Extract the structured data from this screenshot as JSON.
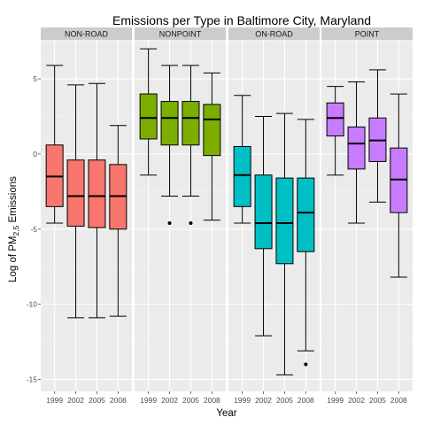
{
  "chart_data": {
    "type": "boxplot",
    "title": "Emissions per Type in Baltimore City, Maryland",
    "xlabel": "Year",
    "ylabel": {
      "prefix": "Log of PM",
      "subscript": "2.5",
      "suffix": " Emissions"
    },
    "ylim": [
      -15.8,
      7.6
    ],
    "y_ticks": [
      5,
      0,
      -5,
      -10,
      -15
    ],
    "y_tick_labels": [
      "5",
      "0",
      "-5",
      "-10",
      "-15"
    ],
    "categories": [
      "1999",
      "2002",
      "2005",
      "2008"
    ],
    "grid": true,
    "facets": [
      {
        "name": "NON-ROAD",
        "color": "#F8766D",
        "boxes": [
          {
            "year": "1999",
            "min": -4.6,
            "q1": -3.5,
            "median": -1.5,
            "q3": 0.6,
            "max": 5.9,
            "outliers": []
          },
          {
            "year": "2002",
            "min": -10.9,
            "q1": -4.8,
            "median": -2.8,
            "q3": -0.4,
            "max": 4.6,
            "outliers": []
          },
          {
            "year": "2005",
            "min": -10.9,
            "q1": -4.9,
            "median": -2.8,
            "q3": -0.4,
            "max": 4.7,
            "outliers": []
          },
          {
            "year": "2008",
            "min": -10.8,
            "q1": -5.0,
            "median": -2.8,
            "q3": -0.7,
            "max": 1.9,
            "outliers": []
          }
        ]
      },
      {
        "name": "NONPOINT",
        "color": "#7CAE00",
        "boxes": [
          {
            "year": "1999",
            "min": -1.4,
            "q1": 1.0,
            "median": 2.4,
            "q3": 4.0,
            "max": 7.0,
            "outliers": []
          },
          {
            "year": "2002",
            "min": -2.8,
            "q1": 0.6,
            "median": 2.4,
            "q3": 3.5,
            "max": 5.9,
            "outliers": [
              -4.6
            ]
          },
          {
            "year": "2005",
            "min": -2.8,
            "q1": 0.6,
            "median": 2.4,
            "q3": 3.5,
            "max": 5.9,
            "outliers": [
              -4.6
            ]
          },
          {
            "year": "2008",
            "min": -4.4,
            "q1": -0.1,
            "median": 2.3,
            "q3": 3.3,
            "max": 5.4,
            "outliers": []
          }
        ]
      },
      {
        "name": "ON-ROAD",
        "color": "#00BFC4",
        "boxes": [
          {
            "year": "1999",
            "min": -4.6,
            "q1": -3.5,
            "median": -1.4,
            "q3": 0.5,
            "max": 3.9,
            "outliers": []
          },
          {
            "year": "2002",
            "min": -12.1,
            "q1": -6.3,
            "median": -4.6,
            "q3": -1.4,
            "max": 2.5,
            "outliers": []
          },
          {
            "year": "2005",
            "min": -14.7,
            "q1": -7.3,
            "median": -4.6,
            "q3": -1.6,
            "max": 2.7,
            "outliers": []
          },
          {
            "year": "2008",
            "min": -13.1,
            "q1": -6.5,
            "median": -3.9,
            "q3": -1.6,
            "max": 2.3,
            "outliers": [
              -14.0
            ]
          }
        ]
      },
      {
        "name": "POINT",
        "color": "#C77CFF",
        "boxes": [
          {
            "year": "1999",
            "min": -1.4,
            "q1": 1.2,
            "median": 2.4,
            "q3": 3.4,
            "max": 4.5,
            "outliers": []
          },
          {
            "year": "2002",
            "min": -4.6,
            "q1": -1.0,
            "median": 0.7,
            "q3": 1.8,
            "max": 4.8,
            "outliers": []
          },
          {
            "year": "2005",
            "min": -3.2,
            "q1": -0.5,
            "median": 0.9,
            "q3": 2.4,
            "max": 5.6,
            "outliers": []
          },
          {
            "year": "2008",
            "min": -8.2,
            "q1": -3.9,
            "median": -1.7,
            "q3": 0.4,
            "max": 4.0,
            "outliers": []
          }
        ]
      }
    ]
  }
}
